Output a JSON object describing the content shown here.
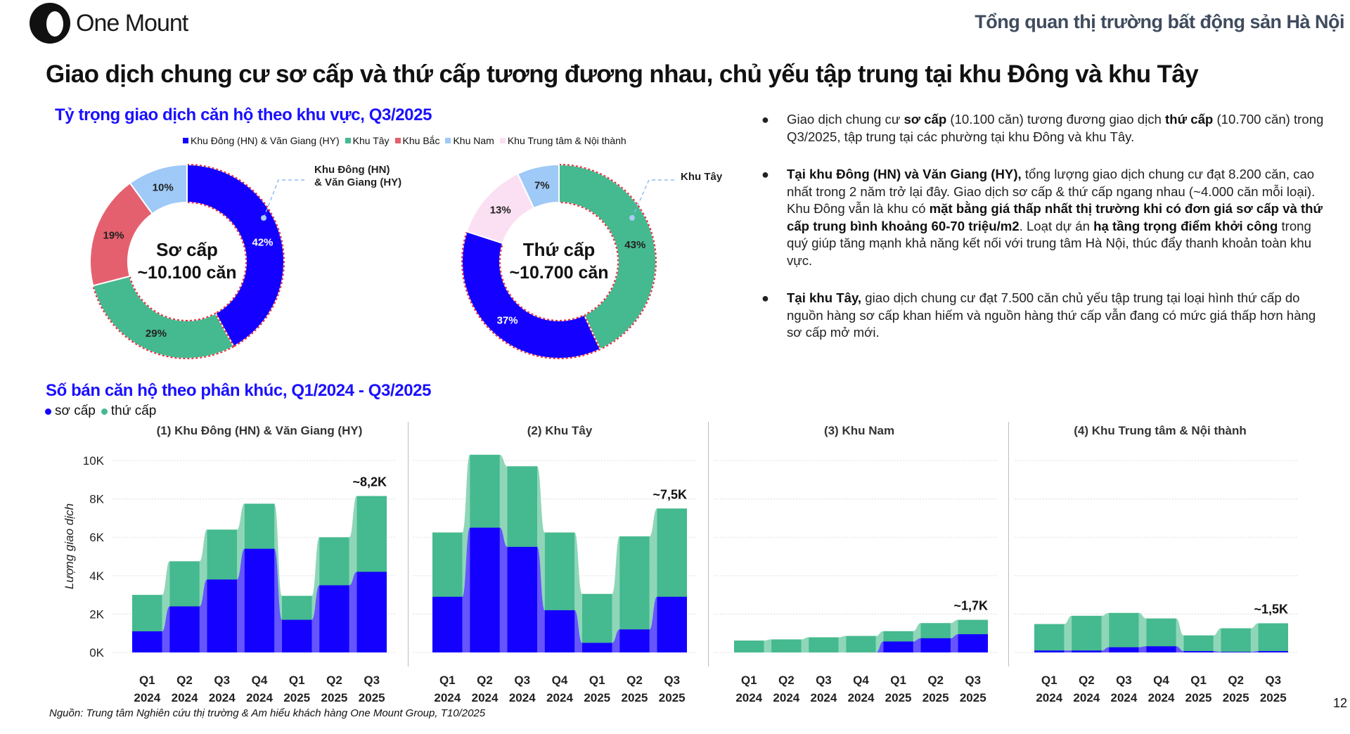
{
  "header": {
    "logo_text": "One Mount",
    "title": "Tổng quan thị trường bất động sản Hà Nội"
  },
  "main_title": "Giao dịch chung cư sơ cấp và thứ cấp tương đương nhau, chủ yếu tập trung tại khu Đông và khu Tây",
  "colors": {
    "blue": "#1400ff",
    "green": "#45b98f",
    "red": "#e5606e",
    "light_blue": "#9fc9f6",
    "pink": "#fbe0f3",
    "title_blue": "#1a10ff"
  },
  "donut_section": {
    "title": "Tỷ trọng giao dịch căn hộ theo khu vực, Q3/2025",
    "legend": [
      {
        "label": "Khu Đông (HN) & Văn Giang (HY)",
        "color": "#1400ff"
      },
      {
        "label": "Khu Tây",
        "color": "#45b98f"
      },
      {
        "label": "Khu Bắc",
        "color": "#e5606e"
      },
      {
        "label": "Khu Nam",
        "color": "#9fc9f6"
      },
      {
        "label": "Khu Trung tâm & Nội thành",
        "color": "#fbe0f3"
      }
    ]
  },
  "bars_section": {
    "title": "Số bán căn hộ theo phân khúc, Q1/2024 - Q3/2025",
    "legend": [
      {
        "label": "sơ cấp",
        "color": "#1400ff"
      },
      {
        "label": "thứ cấp",
        "color": "#45b98f"
      }
    ],
    "y_axis_label": "Lượng giao dịch",
    "y_ticks": [
      "0K",
      "2K",
      "4K",
      "6K",
      "8K",
      "10K"
    ]
  },
  "bullets": [
    [
      {
        "t": "Giao dịch chung cư "
      },
      {
        "t": "sơ cấp",
        "b": true
      },
      {
        "t": " (10.100 căn) tương đương giao dịch "
      },
      {
        "t": "thứ cấp",
        "b": true
      },
      {
        "t": " (10.700 căn) trong Q3/2025, tập trung tại các phường tại khu Đông và khu Tây."
      }
    ],
    [
      {
        "t": "Tại khu Đông (HN) và Văn Giang (HY),",
        "b": true
      },
      {
        "t": " tổng lượng giao dịch chung cư đạt 8.200 căn, cao nhất trong 2 năm trở lại đây. Giao dịch sơ cấp & thứ cấp ngang nhau (~4.000 căn mỗi loại). Khu Đông vẫn là khu có "
      },
      {
        "t": "mặt bằng giá thấp nhất thị trường khi có đơn giá sơ cấp và thứ cấp trung bình khoảng 60-70 triệu/m2",
        "b": true
      },
      {
        "t": ". Loạt dự án "
      },
      {
        "t": "hạ tầng trọng điểm khởi công",
        "b": true
      },
      {
        "t": " trong quý giúp tăng mạnh khả năng kết nối với trung tâm Hà Nội, thúc đẩy thanh khoản toàn khu vực."
      }
    ],
    [
      {
        "t": "Tại khu Tây,",
        "b": true
      },
      {
        "t": " giao dịch chung cư đạt 7.500 căn chủ yếu tập trung tại loại hình thứ cấp do nguồn hàng sơ cấp khan hiếm và nguồn hàng thứ cấp vẫn đang có mức giá thấp hơn hàng sơ cấp mở mới."
      }
    ]
  ],
  "bullet_mark": "●",
  "source": "Nguồn: Trung tâm Nghiên cứu thị trường & Am hiểu khách hàng One Mount Group, T10/2025",
  "page_number": "12",
  "chart_data": [
    {
      "type": "pie",
      "hole": true,
      "center_label": [
        "Sơ cấp",
        "~10.100 căn"
      ],
      "callout": "Khu Đông (HN) & Văn Giang (HY)",
      "slices": [
        {
          "name": "Khu Đông (HN) & Văn Giang (HY)",
          "value": 42,
          "label": "42%",
          "color": "#1400ff"
        },
        {
          "name": "Khu Tây",
          "value": 29,
          "label": "29%",
          "color": "#45b98f"
        },
        {
          "name": "Khu Bắc",
          "value": 19,
          "label": "19%",
          "color": "#e5606e"
        },
        {
          "name": "Khu Nam",
          "value": 10,
          "label": "10%",
          "color": "#9fc9f6"
        }
      ]
    },
    {
      "type": "pie",
      "hole": true,
      "center_label": [
        "Thứ cấp",
        "~10.700 căn"
      ],
      "callout": "Khu Tây",
      "slices": [
        {
          "name": "Khu Tây",
          "value": 43,
          "label": "43%",
          "color": "#45b98f"
        },
        {
          "name": "Khu Đông (HN) & Văn Giang (HY)",
          "value": 37,
          "label": "37%",
          "color": "#1400ff"
        },
        {
          "name": "Khu Trung tâm & Nội thành",
          "value": 13,
          "label": "13%",
          "color": "#fbe0f3"
        },
        {
          "name": "Khu Nam",
          "value": 7,
          "label": "7%",
          "color": "#9fc9f6"
        }
      ]
    },
    {
      "type": "bar",
      "stacked": true,
      "title": "(1) Khu Đông (HN) & Văn Giang (HY)",
      "categories": [
        [
          "Q1",
          "2024"
        ],
        [
          "Q2",
          "2024"
        ],
        [
          "Q3",
          "2024"
        ],
        [
          "Q4",
          "2024"
        ],
        [
          "Q1",
          "2025"
        ],
        [
          "Q2",
          "2025"
        ],
        [
          "Q3",
          "2025"
        ]
      ],
      "series": [
        {
          "name": "sơ cấp",
          "values": [
            1.1,
            2.4,
            3.8,
            5.4,
            1.7,
            3.5,
            4.2
          ]
        },
        {
          "name": "thứ cấp",
          "values": [
            1.9,
            2.35,
            2.6,
            2.35,
            1.25,
            2.5,
            3.95
          ]
        }
      ],
      "annotation": "~8,2K",
      "ylabel": "Lượng giao dịch",
      "ylim": [
        0,
        10
      ],
      "unit": "K",
      "grid": true
    },
    {
      "type": "bar",
      "stacked": true,
      "title": "(2) Khu Tây",
      "categories": [
        [
          "Q1",
          "2024"
        ],
        [
          "Q2",
          "2024"
        ],
        [
          "Q3",
          "2024"
        ],
        [
          "Q4",
          "2024"
        ],
        [
          "Q1",
          "2025"
        ],
        [
          "Q2",
          "2025"
        ],
        [
          "Q3",
          "2025"
        ]
      ],
      "series": [
        {
          "name": "sơ cấp",
          "values": [
            2.9,
            6.5,
            5.5,
            2.2,
            0.5,
            1.2,
            2.9
          ]
        },
        {
          "name": "thứ cấp",
          "values": [
            3.35,
            3.8,
            4.2,
            4.05,
            2.55,
            4.85,
            4.6
          ]
        }
      ],
      "annotation": "~7,5K",
      "ylim": [
        0,
        10
      ],
      "unit": "K",
      "grid": true
    },
    {
      "type": "bar",
      "stacked": true,
      "title": "(3) Khu Nam",
      "categories": [
        [
          "Q1",
          "2024"
        ],
        [
          "Q2",
          "2024"
        ],
        [
          "Q3",
          "2024"
        ],
        [
          "Q4",
          "2024"
        ],
        [
          "Q1",
          "2025"
        ],
        [
          "Q2",
          "2025"
        ],
        [
          "Q3",
          "2025"
        ]
      ],
      "series": [
        {
          "name": "sơ cấp",
          "values": [
            0,
            0,
            0,
            0,
            0.57,
            0.74,
            0.95
          ]
        },
        {
          "name": "thứ cấp",
          "values": [
            0.62,
            0.68,
            0.79,
            0.86,
            0.54,
            0.79,
            0.75
          ]
        }
      ],
      "annotation": "~1,7K",
      "ylim": [
        0,
        10
      ],
      "unit": "K",
      "grid": true
    },
    {
      "type": "bar",
      "stacked": true,
      "title": "(4) Khu Trung tâm & Nội thành",
      "categories": [
        [
          "Q1",
          "2024"
        ],
        [
          "Q2",
          "2024"
        ],
        [
          "Q3",
          "2024"
        ],
        [
          "Q4",
          "2024"
        ],
        [
          "Q1",
          "2025"
        ],
        [
          "Q2",
          "2025"
        ],
        [
          "Q3",
          "2025"
        ]
      ],
      "series": [
        {
          "name": "sơ cấp",
          "values": [
            0.1,
            0.1,
            0.27,
            0.32,
            0.07,
            0.03,
            0.07
          ]
        },
        {
          "name": "thứ cấp",
          "values": [
            1.38,
            1.81,
            1.79,
            1.45,
            0.82,
            1.23,
            1.45
          ]
        }
      ],
      "annotation": "~1,5K",
      "ylim": [
        0,
        10
      ],
      "unit": "K",
      "grid": true
    }
  ]
}
